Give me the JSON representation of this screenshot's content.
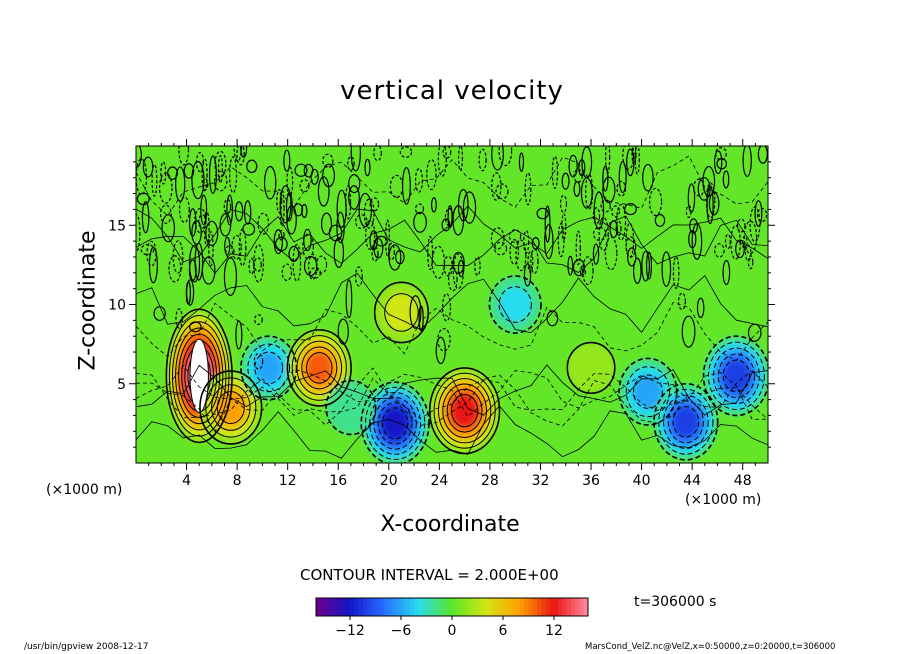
{
  "chart_data": {
    "type": "heatmap",
    "title": "vertical velocity",
    "xlabel": "X-coordinate",
    "ylabel": "Z-coordinate",
    "x_unit": "(×1000 m)",
    "y_unit": "(×1000 m)",
    "xlim": [
      0,
      50
    ],
    "ylim": [
      0,
      20
    ],
    "x_ticks": [
      "4",
      "8",
      "12",
      "16",
      "20",
      "24",
      "28",
      "32",
      "36",
      "40",
      "44",
      "48"
    ],
    "y_ticks": [
      "5",
      "10",
      "15"
    ],
    "contour_interval": "CONTOUR INTERVAL = 2.000E+00",
    "time": "t=306000 s",
    "colorbar": {
      "range": [
        -16,
        16
      ],
      "ticks": [
        "−12",
        "−6",
        "0",
        "6",
        "12"
      ]
    },
    "features": [
      {
        "x": 5,
        "z": 5.5,
        "value": 15
      },
      {
        "x": 7.5,
        "z": 3.5,
        "value": 8
      },
      {
        "x": 10.5,
        "z": 6,
        "value": -5
      },
      {
        "x": 14.5,
        "z": 6,
        "value": 9
      },
      {
        "x": 20.5,
        "z": 2.5,
        "value": -11
      },
      {
        "x": 21,
        "z": 9.5,
        "value": 4
      },
      {
        "x": 26,
        "z": 3.3,
        "value": 12
      },
      {
        "x": 30,
        "z": 10,
        "value": -3
      },
      {
        "x": 40.5,
        "z": 4.5,
        "value": -6
      },
      {
        "x": 43.5,
        "z": 2.6,
        "value": -9
      },
      {
        "x": 47.5,
        "z": 5.5,
        "value": -10
      },
      {
        "x": 17,
        "z": 3.5,
        "value": -2
      },
      {
        "x": 36,
        "z": 6,
        "value": 1
      }
    ]
  },
  "footer": {
    "left": "/usr/bin/gpview  2008-12-17",
    "right": "MarsCond_VelZ.nc@VelZ,x=0:50000,z=0:20000,t=306000"
  }
}
